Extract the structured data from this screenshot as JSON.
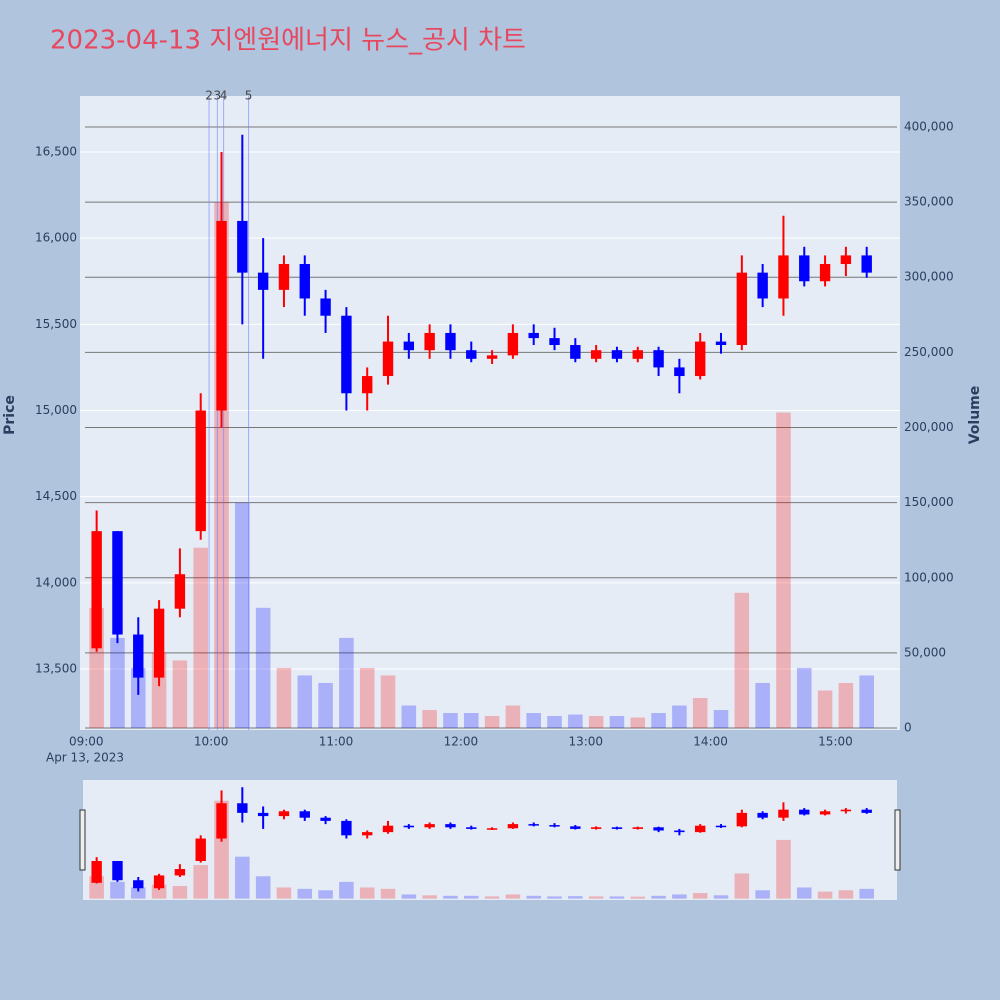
{
  "chart_data": {
    "type": "candlestick",
    "title": "2023-04-13 지엔원에너지 뉴스_공시 차트",
    "x": [
      "09:00",
      "09:10",
      "09:20",
      "09:30",
      "09:40",
      "09:50",
      "10:00",
      "10:10",
      "10:20",
      "10:30",
      "10:40",
      "10:50",
      "11:00",
      "11:10",
      "11:20",
      "11:30",
      "11:40",
      "11:50",
      "12:00",
      "12:10",
      "12:20",
      "12:30",
      "12:40",
      "12:50",
      "13:00",
      "13:10",
      "13:20",
      "13:30",
      "13:40",
      "13:50",
      "14:00",
      "14:10",
      "14:20",
      "14:30",
      "14:40",
      "14:50",
      "15:00",
      "15:10"
    ],
    "open": [
      13620,
      14300,
      13700,
      13450,
      13850,
      14300,
      15000,
      16100,
      15800,
      15700,
      15850,
      15650,
      15550,
      15100,
      15200,
      15400,
      15350,
      15450,
      15350,
      15300,
      15320,
      15450,
      15420,
      15380,
      15300,
      15350,
      15300,
      15350,
      15250,
      15200,
      15400,
      15380,
      15800,
      15650,
      15900,
      15750,
      15850,
      15900
    ],
    "high": [
      14420,
      14300,
      13800,
      13900,
      14200,
      15100,
      16500,
      16600,
      16000,
      15900,
      15900,
      15700,
      15600,
      15250,
      15550,
      15450,
      15500,
      15500,
      15400,
      15350,
      15500,
      15500,
      15480,
      15420,
      15380,
      15370,
      15370,
      15370,
      15300,
      15450,
      15450,
      15900,
      15850,
      16130,
      15950,
      15900,
      15950,
      15950
    ],
    "low": [
      13600,
      13650,
      13350,
      13400,
      13800,
      14250,
      14900,
      15500,
      15300,
      15600,
      15550,
      15450,
      15000,
      15000,
      15150,
      15300,
      15300,
      15300,
      15280,
      15270,
      15300,
      15380,
      15350,
      15280,
      15280,
      15280,
      15280,
      15200,
      15100,
      15180,
      15330,
      15350,
      15600,
      15550,
      15720,
      15720,
      15780,
      15770
    ],
    "close": [
      14300,
      13700,
      13450,
      13850,
      14050,
      15000,
      16100,
      15800,
      15700,
      15850,
      15650,
      15550,
      15100,
      15200,
      15400,
      15350,
      15450,
      15350,
      15300,
      15320,
      15450,
      15420,
      15380,
      15300,
      15350,
      15300,
      15350,
      15250,
      15200,
      15400,
      15380,
      15800,
      15650,
      15900,
      15750,
      15850,
      15900,
      15800
    ],
    "volume": [
      80000,
      60000,
      40000,
      50000,
      45000,
      120000,
      350000,
      150000,
      80000,
      40000,
      35000,
      30000,
      60000,
      40000,
      35000,
      15000,
      12000,
      10000,
      10000,
      8000,
      15000,
      10000,
      8000,
      9000,
      8000,
      8000,
      7000,
      10000,
      15000,
      20000,
      12000,
      90000,
      30000,
      210000,
      40000,
      25000,
      30000,
      35000
    ],
    "increasing_color": "#ff0000",
    "decreasing_color": "#0000ff",
    "xlim": [
      "08:57",
      "15:31"
    ],
    "xticks": [
      "09:00",
      "10:00",
      "11:00",
      "12:00",
      "13:00",
      "14:00",
      "15:00"
    ],
    "x_date_label": "Apr 13, 2023",
    "ylim": [
      13146,
      16825
    ],
    "yticks": [
      {
        "value": 13500,
        "label": "13,500"
      },
      {
        "value": 14000,
        "label": "14,000"
      },
      {
        "value": 14500,
        "label": "14,500"
      },
      {
        "value": 15000,
        "label": "15,000"
      },
      {
        "value": 15500,
        "label": "15,500"
      },
      {
        "value": 16000,
        "label": "16,000"
      },
      {
        "value": 16500,
        "label": "16,500"
      }
    ],
    "y2lim": [
      -1300,
      420600
    ],
    "y2ticks": [
      0,
      {
        "value": 50000,
        "label": "50,000"
      },
      {
        "value": 100000,
        "label": "100,000"
      },
      {
        "value": 150000,
        "label": "150,000"
      },
      {
        "value": 200000,
        "label": "200,000"
      },
      {
        "value": 250000,
        "label": "250,000"
      },
      {
        "value": 300000,
        "label": "300,000"
      },
      {
        "value": 350000,
        "label": "350,000"
      },
      {
        "value": 400000,
        "label": "400,000"
      }
    ],
    "y_title": "Price",
    "y2_title": "Volume",
    "annotations": [
      {
        "x": "09:59",
        "text": "2"
      },
      {
        "x": "10:03",
        "text": "3"
      },
      {
        "x": "10:06",
        "text": "4"
      },
      {
        "x": "10:18",
        "text": "5"
      }
    ],
    "grid": true,
    "rangeslider": true
  }
}
